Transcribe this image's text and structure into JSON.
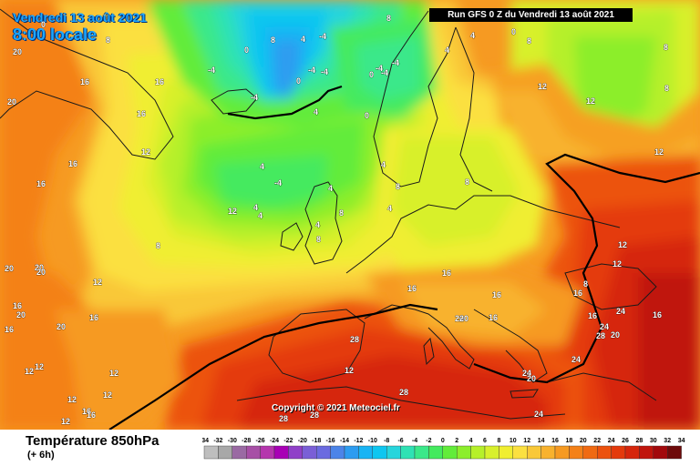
{
  "header": {
    "valid_date": "Vendredi 13 août 2021",
    "local_time": "8:00 locale",
    "run_info": "Run GFS 0 Z du Vendredi 13 août 2021"
  },
  "copyright": "Copyright © 2021 Meteociel.fr",
  "footer": {
    "variable": "Température 850hPa",
    "offset": "(+ 6h)"
  },
  "legend": {
    "ticks": [
      "-34",
      "-32",
      "-30",
      "-28",
      "-26",
      "-24",
      "-22",
      "-20",
      "-18",
      "-16",
      "-14",
      "-12",
      "-10",
      "-8",
      "-6",
      "-4",
      "-2",
      "0",
      "2",
      "4",
      "6",
      "8",
      "10",
      "12",
      "14",
      "16",
      "18",
      "20",
      "22",
      "24",
      "26",
      "28",
      "30",
      "32",
      "34"
    ],
    "colors": [
      "#bebebe",
      "#a8a8a8",
      "#9a6aa3",
      "#a74fa6",
      "#b536ad",
      "#a800b5",
      "#9040c8",
      "#7a5fd6",
      "#6b6be0",
      "#4c84e8",
      "#2d9cf0",
      "#19b4f4",
      "#0ec6f0",
      "#27d5dc",
      "#2fe2b4",
      "#3ae88a",
      "#44ea5e",
      "#62ec3a",
      "#8cee2c",
      "#b6f02a",
      "#d8f02c",
      "#f0ee30",
      "#fbe040",
      "#f9c838",
      "#f8b22e",
      "#f69a22",
      "#f48118",
      "#f06a12",
      "#ec520e",
      "#e43a0c",
      "#d6260c",
      "#c0150c",
      "#a2090c",
      "#6e0a0a"
    ]
  },
  "labels": [
    "20",
    "0",
    "0",
    "-4",
    "-4",
    "8",
    "4",
    "0",
    "16",
    "20",
    "16",
    "0",
    "-4",
    "0",
    "4",
    "16",
    "8",
    "-4",
    "-4",
    "-4",
    "8",
    "-4",
    "-4",
    "4",
    "4",
    "0",
    "8",
    "12",
    "8",
    "12",
    "8",
    "12",
    "12",
    "16",
    "16",
    "12",
    "8",
    "12",
    "4",
    "-4",
    "4",
    "4",
    "4",
    "4",
    "8",
    "8",
    "4",
    "4",
    "8",
    "8",
    "16",
    "20",
    "16",
    "16",
    "16",
    "8",
    "12",
    "12",
    "16",
    "16",
    "24",
    "24",
    "20",
    "28",
    "24",
    "24",
    "20",
    "16",
    "16",
    "20",
    "16",
    "20",
    "20",
    "20",
    "20",
    "16",
    "16",
    "16",
    "12",
    "12",
    "12",
    "12",
    "12",
    "12",
    "12",
    "28",
    "28",
    "28",
    "28",
    "24",
    "20",
    "20"
  ]
}
